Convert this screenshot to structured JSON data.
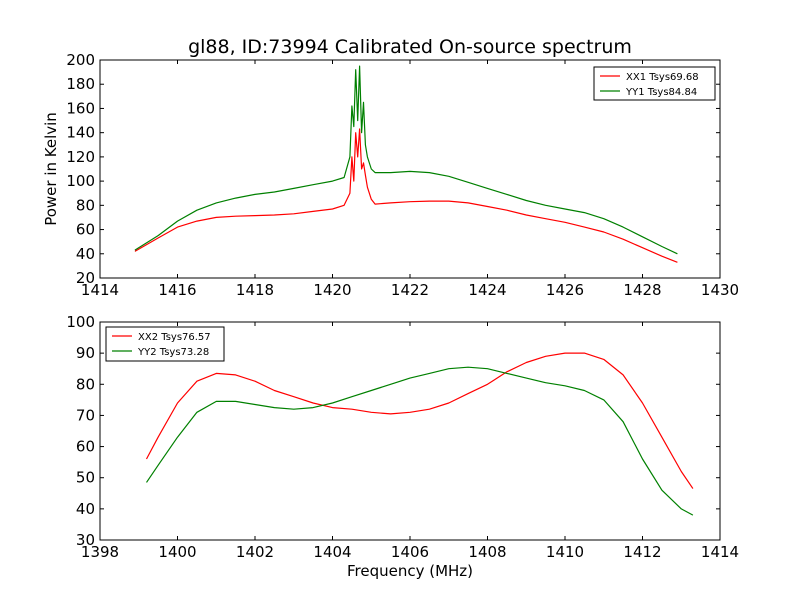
{
  "figure": {
    "title": "gl88, ID:73994 Calibrated On-source spectrum"
  },
  "chart_data": [
    {
      "type": "line",
      "title": "gl88, ID:73994 Calibrated On-source spectrum",
      "xlabel": "",
      "ylabel": "Power in Kelvin",
      "xlim": [
        1414,
        1430
      ],
      "ylim": [
        20,
        200
      ],
      "xticks": [
        "1414",
        "1416",
        "1418",
        "1420",
        "1422",
        "1424",
        "1426",
        "1428",
        "1430"
      ],
      "yticks": [
        "20",
        "40",
        "60",
        "80",
        "100",
        "120",
        "140",
        "160",
        "180",
        "200"
      ],
      "grid": false,
      "legend": "top-right",
      "series": [
        {
          "name": "XX1 Tsys69.68",
          "color": "#ff0000",
          "x": [
            1414.9,
            1415.5,
            1416,
            1416.5,
            1417,
            1417.5,
            1418,
            1418.5,
            1419,
            1419.5,
            1420,
            1420.3,
            1420.45,
            1420.5,
            1420.55,
            1420.6,
            1420.65,
            1420.7,
            1420.75,
            1420.8,
            1420.85,
            1420.9,
            1421,
            1421.1,
            1421.5,
            1422,
            1422.5,
            1423,
            1423.5,
            1424,
            1424.5,
            1425,
            1425.5,
            1426,
            1426.5,
            1427,
            1427.5,
            1428,
            1428.5,
            1428.9
          ],
          "values": [
            42,
            53,
            62,
            67,
            70,
            71,
            71.5,
            72,
            73,
            75,
            77,
            80,
            90,
            120,
            100,
            140,
            120,
            143,
            110,
            115,
            105,
            95,
            85,
            81,
            82,
            83,
            83.5,
            83.5,
            82,
            79,
            76,
            72,
            69,
            66,
            62,
            58,
            52,
            45,
            38,
            33
          ]
        },
        {
          "name": "YY1 Tsys84.84",
          "color": "#008000",
          "x": [
            1414.9,
            1415.5,
            1416,
            1416.5,
            1417,
            1417.5,
            1418,
            1418.5,
            1419,
            1419.5,
            1420,
            1420.3,
            1420.45,
            1420.5,
            1420.55,
            1420.6,
            1420.65,
            1420.7,
            1420.75,
            1420.8,
            1420.85,
            1420.9,
            1421,
            1421.1,
            1421.5,
            1422,
            1422.5,
            1423,
            1423.5,
            1424,
            1424.5,
            1425,
            1425.5,
            1426,
            1426.5,
            1427,
            1427.5,
            1428,
            1428.5,
            1428.9
          ],
          "values": [
            43,
            55,
            67,
            76,
            82,
            86,
            89,
            91,
            94,
            97,
            100,
            103,
            120,
            162,
            145,
            192,
            150,
            195,
            140,
            165,
            130,
            120,
            110,
            107,
            107,
            108,
            107,
            104,
            99,
            94,
            89,
            84,
            80,
            77,
            74,
            69,
            62,
            54,
            46,
            40
          ]
        }
      ]
    },
    {
      "type": "line",
      "title": "",
      "xlabel": "Frequency (MHz)",
      "ylabel": "",
      "xlim": [
        1398,
        1414
      ],
      "ylim": [
        30,
        100
      ],
      "xticks": [
        "1398",
        "1400",
        "1402",
        "1404",
        "1406",
        "1408",
        "1410",
        "1412",
        "1414"
      ],
      "yticks": [
        "30",
        "40",
        "50",
        "60",
        "70",
        "80",
        "90",
        "100"
      ],
      "grid": false,
      "legend": "top-left",
      "series": [
        {
          "name": "XX2 Tsys76.57",
          "color": "#ff0000",
          "x": [
            1399.2,
            1399.5,
            1400,
            1400.5,
            1401,
            1401.5,
            1402,
            1402.5,
            1403,
            1403.5,
            1404,
            1404.5,
            1405,
            1405.5,
            1406,
            1406.5,
            1407,
            1407.5,
            1408,
            1408.5,
            1409,
            1409.5,
            1410,
            1410.5,
            1411,
            1411.5,
            1412,
            1412.5,
            1413,
            1413.3
          ],
          "values": [
            56,
            63,
            74,
            81,
            83.5,
            83,
            81,
            78,
            76,
            74,
            72.5,
            72,
            71,
            70.5,
            71,
            72,
            74,
            77,
            80,
            84,
            87,
            89,
            90,
            90,
            88,
            83,
            74,
            63,
            52,
            46.5
          ]
        },
        {
          "name": "YY2 Tsys73.28",
          "color": "#008000",
          "x": [
            1399.2,
            1399.5,
            1400,
            1400.5,
            1401,
            1401.5,
            1402,
            1402.5,
            1403,
            1403.5,
            1404,
            1404.5,
            1405,
            1405.5,
            1406,
            1406.5,
            1407,
            1407.5,
            1408,
            1408.5,
            1409,
            1409.5,
            1410,
            1410.5,
            1411,
            1411.5,
            1412,
            1412.5,
            1413,
            1413.3
          ],
          "values": [
            48.5,
            54,
            63,
            71,
            74.5,
            74.5,
            73.5,
            72.5,
            72,
            72.5,
            74,
            76,
            78,
            80,
            82,
            83.5,
            85,
            85.5,
            85,
            83.5,
            82,
            80.5,
            79.5,
            78,
            75,
            68,
            56,
            46,
            40,
            38
          ]
        }
      ]
    }
  ]
}
